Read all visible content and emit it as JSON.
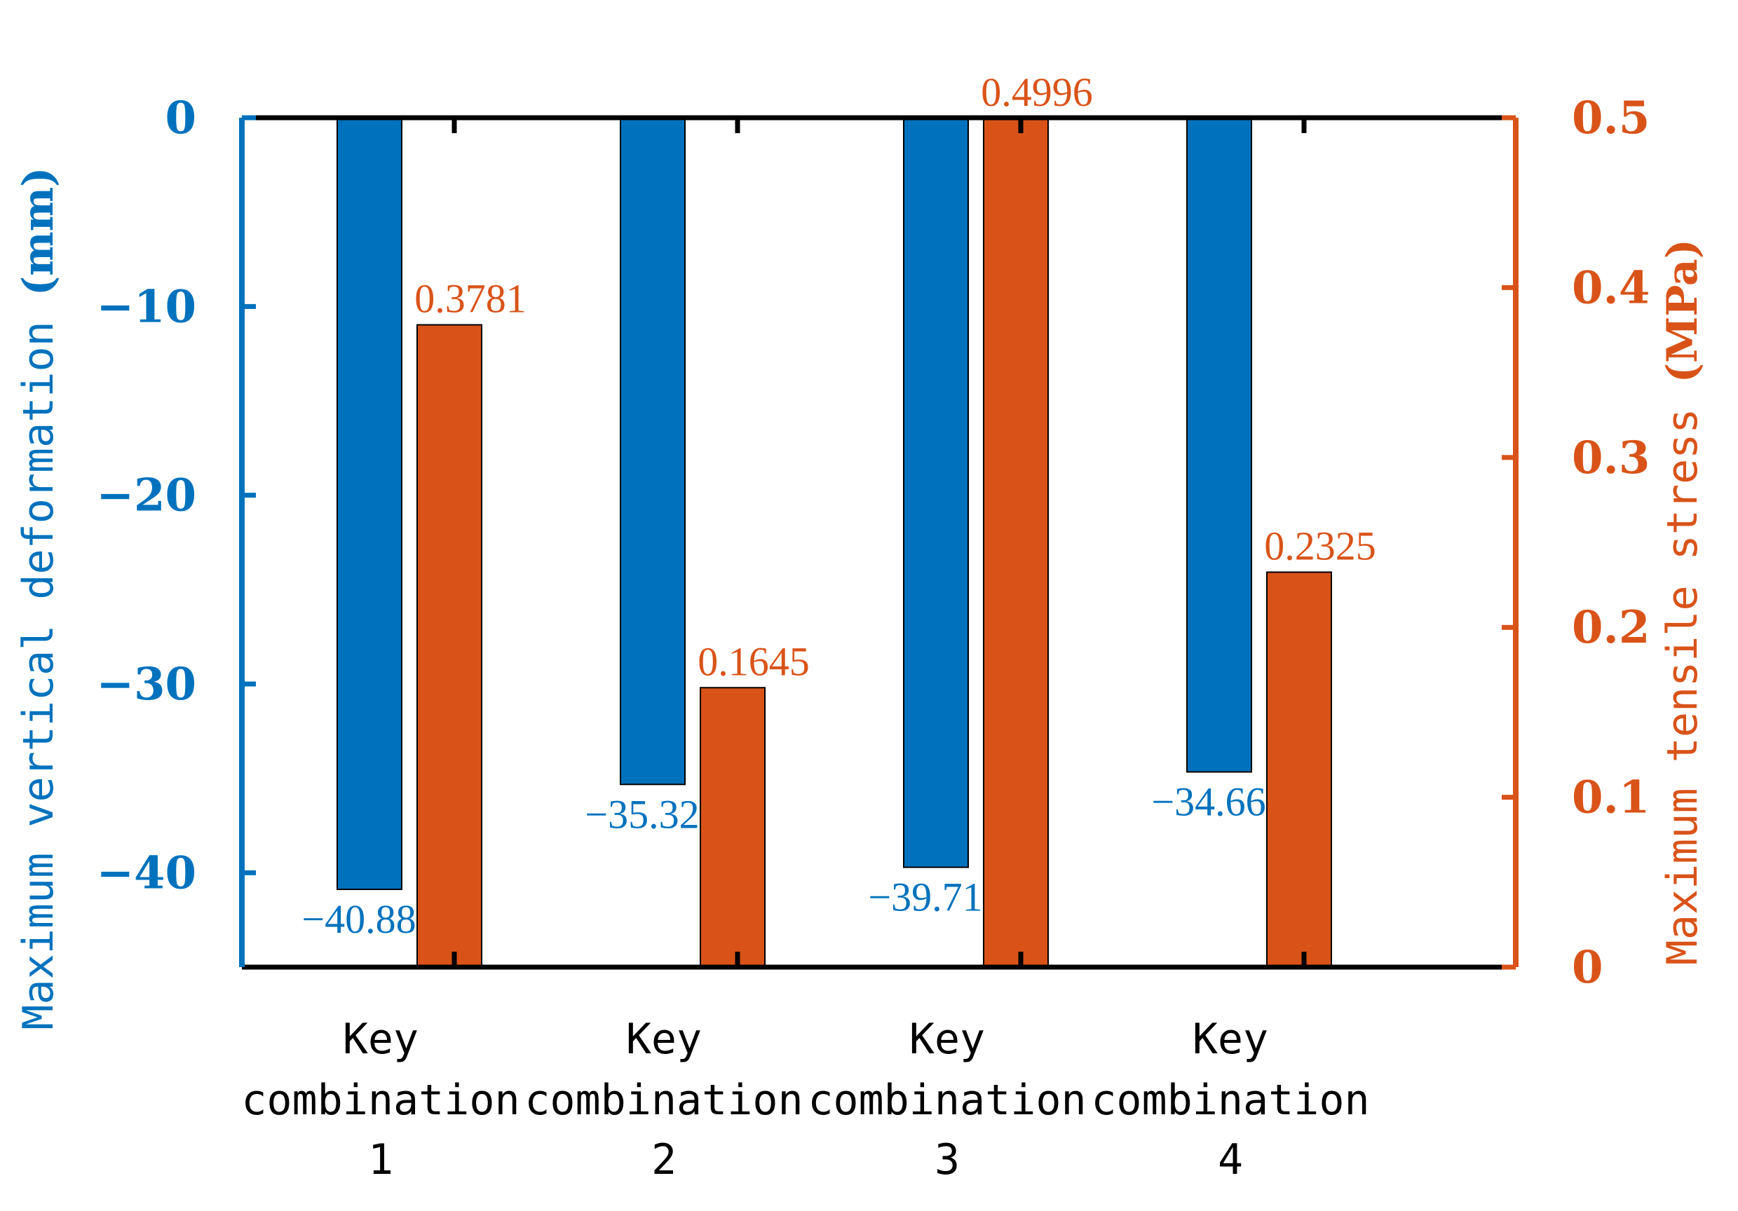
{
  "chart_data": {
    "type": "bar",
    "categories": [
      [
        "Key",
        "combination",
        "1"
      ],
      [
        "Key",
        "combination",
        "2"
      ],
      [
        "Key",
        "combination",
        "3"
      ],
      [
        "Key",
        "combination",
        "4"
      ]
    ],
    "series": [
      {
        "name": "Maximum vertical deformation",
        "axis": "left",
        "color": "#0072BD",
        "values": [
          -40.88,
          -35.32,
          -39.71,
          -34.66
        ],
        "labels": [
          "−40.88",
          "−35.32",
          "−39.71",
          "−34.66"
        ]
      },
      {
        "name": "Maximum tensile stress",
        "axis": "right",
        "color": "#D95319",
        "values": [
          0.3781,
          0.1645,
          0.4996,
          0.2325
        ],
        "labels": [
          "0.3781",
          "0.1645",
          "0.4996",
          "0.2325"
        ]
      }
    ],
    "left_axis": {
      "label": "Maximum vertical deformation",
      "unit": "mm",
      "unit_paren": "(mm)",
      "ylim": [
        -45,
        0
      ],
      "ticks": [
        0,
        -10,
        -20,
        -30,
        -40
      ],
      "tick_labels": [
        "0",
        "−10",
        "−20",
        "−30",
        "−40"
      ],
      "color": "#0072BD"
    },
    "right_axis": {
      "label": "Maximum tensile stress",
      "unit": "MPa",
      "unit_paren": "(MPa)",
      "ylim": [
        0,
        0.5
      ],
      "ticks": [
        0,
        0.1,
        0.2,
        0.3,
        0.4,
        0.5
      ],
      "tick_labels": [
        "0",
        "0.1",
        "0.2",
        "0.3",
        "0.4",
        "0.5"
      ],
      "color": "#D95319"
    },
    "title": "",
    "grid": false
  }
}
